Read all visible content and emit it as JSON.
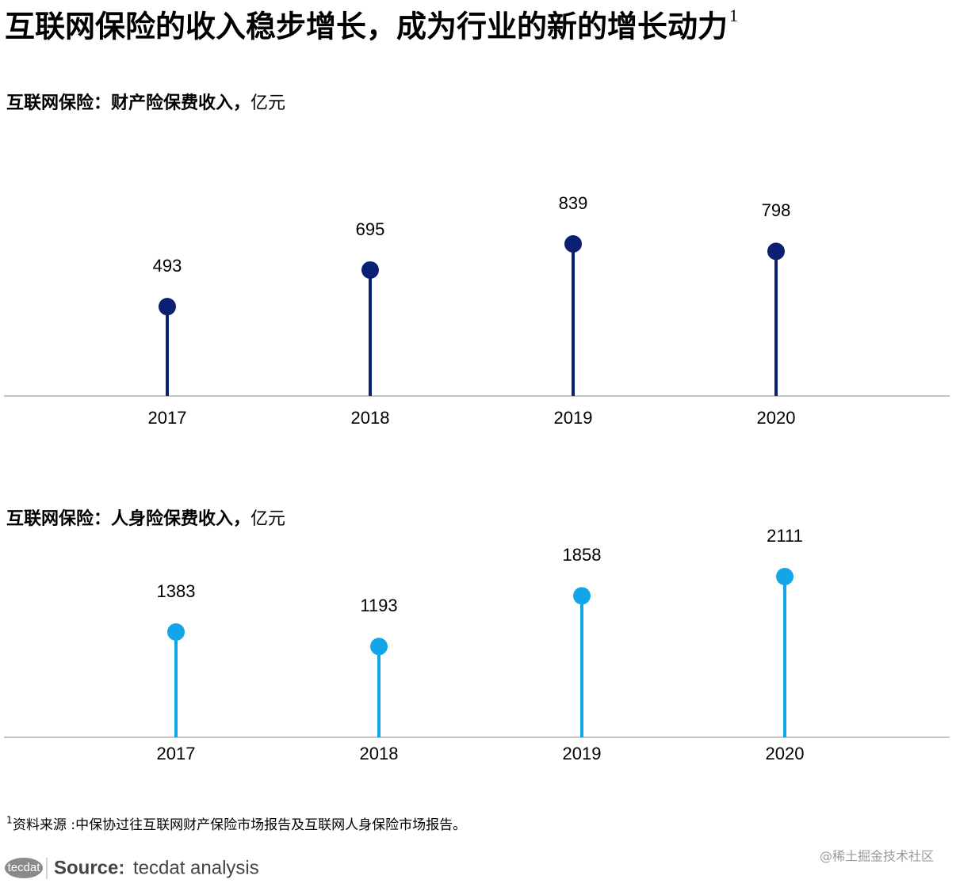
{
  "title": "互联网保险的收入稳步增长，成为行业的新的增长动力",
  "title_note": "1",
  "chart_data": [
    {
      "type": "lollipop",
      "title": "互联网保险：财产险保费收入，",
      "unit": "亿元",
      "categories": [
        "2017",
        "2018",
        "2019",
        "2020"
      ],
      "values": [
        493,
        695,
        839,
        798
      ],
      "color": "#0b1f73"
    },
    {
      "type": "lollipop",
      "title": "互联网保险：人身险保费收入，",
      "unit": "亿元",
      "categories": [
        "2017",
        "2018",
        "2019",
        "2020"
      ],
      "values": [
        1383,
        1193,
        1858,
        2111
      ],
      "color": "#12a5e8"
    }
  ],
  "footnote": {
    "mark": "1",
    "text": "资料来源 :中保协过往互联网财产保险市场报告及互联网人身保险市场报告。"
  },
  "source": {
    "logo": "tecdat",
    "label": "Source:",
    "text": "tecdat analysis"
  },
  "watermark": "@稀土掘金技术社区"
}
